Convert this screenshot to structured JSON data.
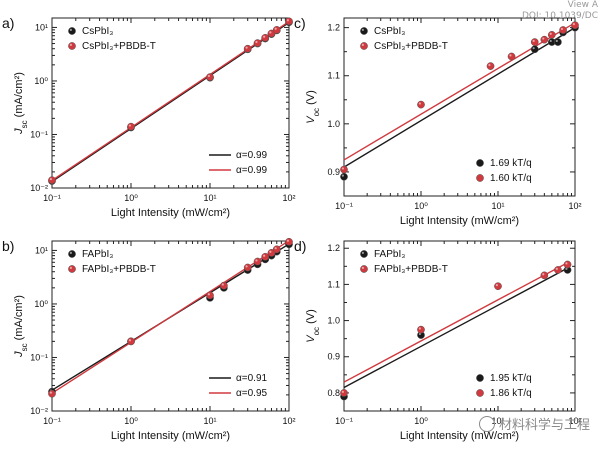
{
  "chart_data": [
    {
      "panel": "a)",
      "type": "scatter",
      "scale": {
        "x": "log",
        "y": "log"
      },
      "xlim": [
        0.1,
        100
      ],
      "ylim": [
        0.01,
        15
      ],
      "xticks": [
        0.1,
        1,
        10,
        100
      ],
      "xticklabels": [
        "10⁻¹",
        "10⁰",
        "10¹",
        "10²"
      ],
      "yticks": [
        0.01,
        0.1,
        1,
        10
      ],
      "yticklabels": [
        "10⁻²",
        "10⁻¹",
        "10⁰",
        "10¹"
      ],
      "xlabel": "Light Intensity (mW/cm²)",
      "ylabel": "J_sc (mA/cm²)",
      "series": [
        {
          "name": "CsPbI₃",
          "color": "#1a1a1a",
          "x": [
            0.1,
            1,
            10,
            30,
            40,
            50,
            60,
            70,
            100
          ],
          "y": [
            0.0135,
            0.135,
            1.15,
            3.9,
            5.0,
            6.2,
            7.5,
            8.8,
            12.5
          ]
        },
        {
          "name": "CsPbI₃+PBDB-T",
          "color": "#d0393e",
          "x": [
            0.1,
            1,
            10,
            30,
            40,
            50,
            60,
            70,
            100
          ],
          "y": [
            0.014,
            0.14,
            1.18,
            4.0,
            5.1,
            6.4,
            7.7,
            9.0,
            13.0
          ]
        }
      ],
      "fits": [
        {
          "label": "α=0.99",
          "color": "#1a1a1a",
          "slope": 0.99,
          "x0": 0.1,
          "y0": 0.0132,
          "x1": 100
        },
        {
          "label": "α=0.99",
          "color": "#d0393e",
          "slope": 0.99,
          "x0": 0.1,
          "y0": 0.0138,
          "x1": 100
        }
      ],
      "legend_position": "top-left",
      "fit_legend_position": "bottom-right"
    },
    {
      "panel": "b)",
      "type": "scatter",
      "scale": {
        "x": "log",
        "y": "log"
      },
      "xlim": [
        0.1,
        100
      ],
      "ylim": [
        0.01,
        15
      ],
      "xticks": [
        0.1,
        1,
        10,
        100
      ],
      "xticklabels": [
        "10⁻¹",
        "10⁰",
        "10¹",
        "10²"
      ],
      "yticks": [
        0.01,
        0.1,
        1,
        10
      ],
      "yticklabels": [
        "10⁻²",
        "10⁻¹",
        "10⁰",
        "10¹"
      ],
      "xlabel": "Light Intensity (mW/cm²)",
      "ylabel": "J_sc (mA/cm²)",
      "series": [
        {
          "name": "FAPbI₃",
          "color": "#1a1a1a",
          "x": [
            0.1,
            1,
            10,
            15,
            30,
            40,
            50,
            60,
            70,
            100
          ],
          "y": [
            0.023,
            0.2,
            1.3,
            2.0,
            4.3,
            5.5,
            6.8,
            8.0,
            9.5,
            13.0
          ]
        },
        {
          "name": "FAPbI₃+PBDB-T",
          "color": "#d0393e",
          "x": [
            0.1,
            1,
            10,
            15,
            30,
            40,
            50,
            60,
            70,
            100
          ],
          "y": [
            0.021,
            0.2,
            1.45,
            2.2,
            4.8,
            6.2,
            7.6,
            9.0,
            10.5,
            14.5
          ]
        }
      ],
      "fits": [
        {
          "label": "α=0.91",
          "color": "#1a1a1a",
          "slope": 0.91,
          "x0": 0.1,
          "y0": 0.0245,
          "x1": 100
        },
        {
          "label": "α=0.95",
          "color": "#d0393e",
          "slope": 0.95,
          "x0": 0.1,
          "y0": 0.0215,
          "x1": 100
        }
      ],
      "legend_position": "top-left",
      "fit_legend_position": "bottom-right"
    },
    {
      "panel": "c)",
      "type": "scatter",
      "scale": {
        "x": "log",
        "y": "linear"
      },
      "xlim": [
        0.1,
        100
      ],
      "ylim": [
        0.85,
        1.22
      ],
      "xticks": [
        0.1,
        1,
        10,
        100
      ],
      "xticklabels": [
        "10⁻¹",
        "10⁰",
        "10¹",
        "10²"
      ],
      "yticks": [
        0.9,
        1.0,
        1.1,
        1.2
      ],
      "yticklabels": [
        "0.9",
        "1.0",
        "1.1",
        "1.2"
      ],
      "xlabel": "Light Intensity (mW/cm²)",
      "ylabel": "V_oc (V)",
      "series": [
        {
          "name": "CsPbI₃",
          "color": "#1a1a1a",
          "x": [
            0.1,
            30,
            50,
            60,
            70,
            100
          ],
          "y": [
            0.89,
            1.155,
            1.17,
            1.17,
            1.19,
            1.2
          ]
        },
        {
          "name": "CsPbI₃+PBDB-T",
          "color": "#d0393e",
          "x": [
            0.1,
            1,
            8,
            15,
            30,
            40,
            50,
            70,
            100
          ],
          "y": [
            0.905,
            1.04,
            1.12,
            1.14,
            1.17,
            1.175,
            1.185,
            1.195,
            1.205
          ]
        }
      ],
      "fits": [
        {
          "label": "1.69 kT/q",
          "color": "#1a1a1a",
          "x0": 0.1,
          "y0": 0.91,
          "x1": 100,
          "y1": 1.2
        },
        {
          "label": "1.60 kT/q",
          "color": "#d0393e",
          "x0": 0.1,
          "y0": 0.925,
          "x1": 100,
          "y1": 1.21
        }
      ],
      "legend_position": "top-left",
      "fit_legend_position": "bottom-right"
    },
    {
      "panel": "d)",
      "type": "scatter",
      "scale": {
        "x": "log",
        "y": "linear"
      },
      "xlim": [
        0.1,
        100
      ],
      "ylim": [
        0.75,
        1.22
      ],
      "xticks": [
        0.1,
        1,
        10,
        100
      ],
      "xticklabels": [
        "10⁻¹",
        "10⁰",
        "10¹",
        "10²"
      ],
      "yticks": [
        0.8,
        0.9,
        1.0,
        1.1,
        1.2
      ],
      "yticklabels": [
        "0.8",
        "0.9",
        "1.0",
        "1.1",
        "1.2"
      ],
      "xlabel": "Light Intensity (mW/cm²)",
      "ylabel": "V_oc (V)",
      "series": [
        {
          "name": "FAPbI₃",
          "color": "#1a1a1a",
          "x": [
            0.1,
            1,
            80
          ],
          "y": [
            0.79,
            0.96,
            1.14
          ]
        },
        {
          "name": "FAPbI₃+PBDB-T",
          "color": "#d0393e",
          "x": [
            0.1,
            1,
            10,
            40,
            60,
            80
          ],
          "y": [
            0.8,
            0.975,
            1.095,
            1.125,
            1.14,
            1.155
          ]
        }
      ],
      "fits": [
        {
          "label": "1.95 kT/q",
          "color": "#1a1a1a",
          "x0": 0.1,
          "y0": 0.815,
          "x1": 80,
          "y1": 1.145
        },
        {
          "label": "1.86 kT/q",
          "color": "#d0393e",
          "x0": 0.1,
          "y0": 0.83,
          "x1": 80,
          "y1": 1.16
        }
      ],
      "legend_position": "top-left",
      "fit_legend_position": "bottom-right"
    }
  ],
  "watermarks": {
    "top_right_line1": "View A",
    "top_right_line2": "DOI: 10.1039/DC",
    "bottom_right": "材料科学与工程"
  }
}
